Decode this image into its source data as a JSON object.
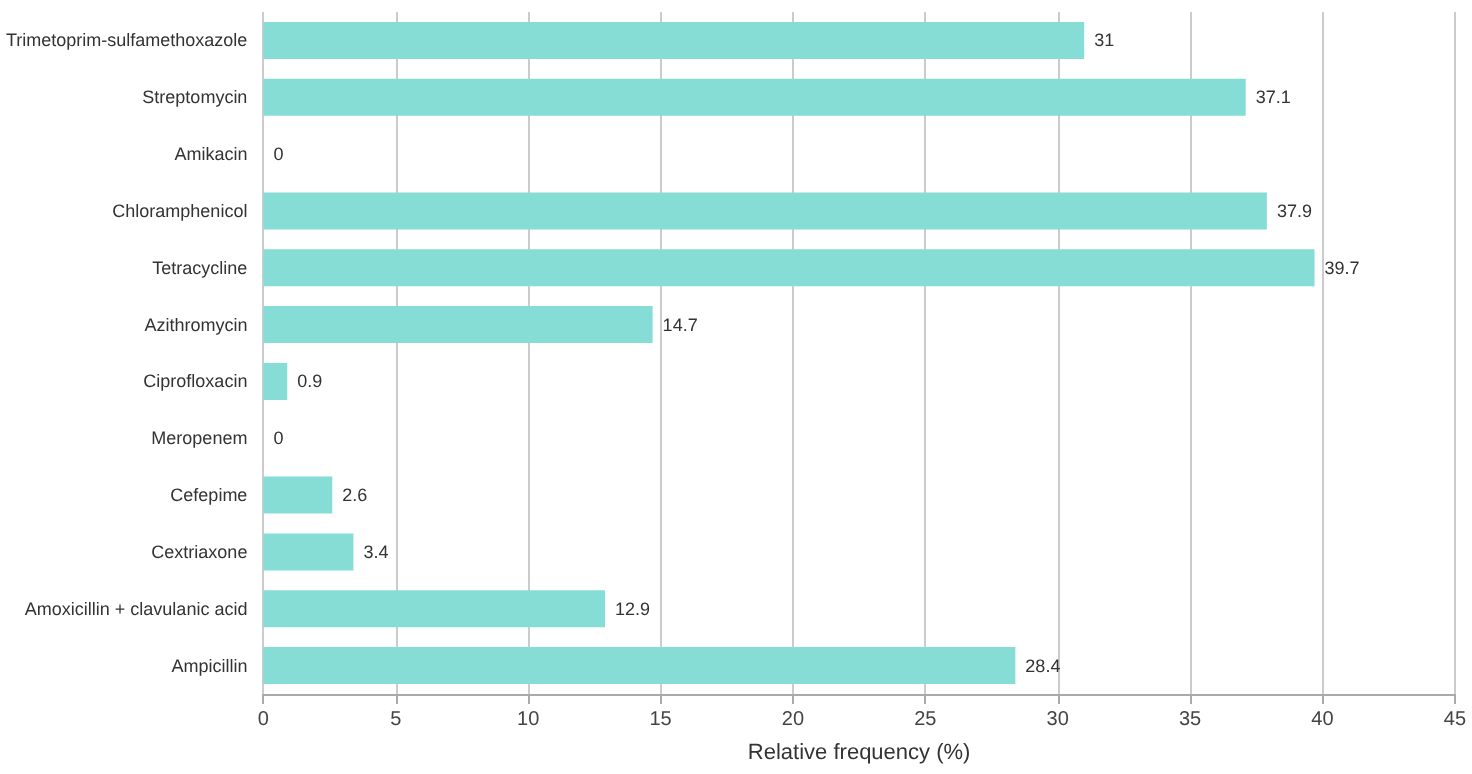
{
  "chart_data": {
    "type": "bar",
    "orientation": "horizontal",
    "xlabel": "Relative frequency (%)",
    "categories": [
      "Trimetoprim-sulfamethoxazole",
      "Streptomycin",
      "Amikacin",
      "Chloramphenicol",
      "Tetracycline",
      "Azithromycin",
      "Ciprofloxacin",
      "Meropenem",
      "Cefepime",
      "Cextriaxone",
      "Amoxicillin + clavulanic acid",
      "Ampicillin"
    ],
    "values": [
      31,
      37.1,
      0,
      37.9,
      39.7,
      14.7,
      0.9,
      0,
      2.6,
      3.4,
      12.9,
      28.4
    ],
    "color": "#86ddd6",
    "data_labels": true,
    "grid": "x",
    "xlim": [
      0,
      45
    ],
    "xticks": [
      0,
      5,
      10,
      15,
      20,
      25,
      30,
      35,
      40,
      45
    ]
  }
}
